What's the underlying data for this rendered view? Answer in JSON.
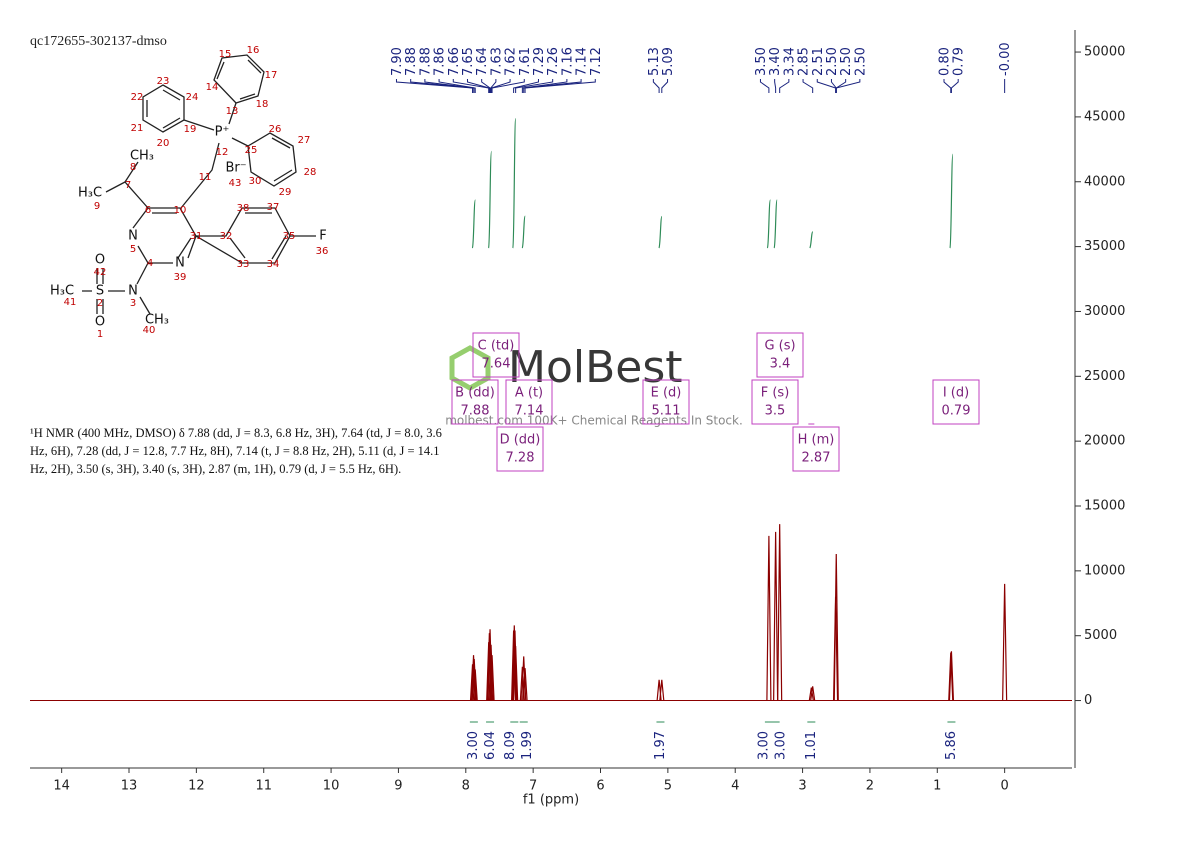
{
  "chart_data": {
    "type": "spectrum",
    "title": "qc172655-302137-dmso",
    "x_label": "f1 (ppm)",
    "xlim": [
      14.47,
      -1.0
    ],
    "xticks": [
      14,
      13,
      12,
      11,
      10,
      9,
      8,
      7,
      6,
      5,
      4,
      3,
      2,
      1,
      0
    ],
    "ylim": [
      -5200,
      51700
    ],
    "yticks": [
      0,
      5000,
      10000,
      15000,
      20000,
      25000,
      30000,
      35000,
      40000,
      45000,
      50000
    ],
    "color": "#8b0000",
    "x": [
      7.9,
      7.885,
      7.875,
      7.86,
      7.66,
      7.65,
      7.64,
      7.625,
      7.61,
      7.29,
      7.28,
      7.27,
      7.26,
      7.16,
      7.14,
      7.12,
      5.13,
      5.09,
      3.5,
      3.4,
      3.34,
      2.87,
      2.85,
      2.51,
      2.5,
      0.8,
      0.79,
      0.0
    ],
    "values": [
      2800,
      3500,
      3200,
      2400,
      4500,
      5200,
      5500,
      4300,
      3500,
      5400,
      5800,
      5400,
      4200,
      2600,
      3400,
      2500,
      1600,
      1600,
      12700,
      13000,
      13600,
      1000,
      1100,
      8000,
      11300,
      3700,
      3800,
      9000
    ],
    "peak_labels": [
      {
        "value": 7.9,
        "label": "7.90"
      },
      {
        "value": 7.88,
        "label": "7.88"
      },
      {
        "value": 7.88,
        "label": "7.88"
      },
      {
        "value": 7.86,
        "label": "7.86"
      },
      {
        "value": 7.66,
        "label": "7.66"
      },
      {
        "value": 7.65,
        "label": "7.65"
      },
      {
        "value": 7.64,
        "label": "7.64"
      },
      {
        "value": 7.63,
        "label": "7.63"
      },
      {
        "value": 7.62,
        "label": "7.62"
      },
      {
        "value": 7.61,
        "label": "7.61"
      },
      {
        "value": 7.29,
        "label": "7.29"
      },
      {
        "value": 7.26,
        "label": "7.26"
      },
      {
        "value": 7.16,
        "label": "7.16"
      },
      {
        "value": 7.14,
        "label": "7.14"
      },
      {
        "value": 7.12,
        "label": "7.12"
      },
      {
        "value": 5.13,
        "label": "5.13"
      },
      {
        "value": 5.09,
        "label": "5.09"
      },
      {
        "value": 3.5,
        "label": "3.50"
      },
      {
        "value": 3.4,
        "label": "3.40"
      },
      {
        "value": 3.34,
        "label": "3.34"
      },
      {
        "value": 2.85,
        "label": "2.85"
      },
      {
        "value": 2.51,
        "label": "2.51"
      },
      {
        "value": 2.5,
        "label": "2.50"
      },
      {
        "value": 2.5,
        "label": "2.50"
      },
      {
        "value": 2.5,
        "label": "2.50"
      },
      {
        "value": 0.8,
        "label": "0.80"
      },
      {
        "value": 0.79,
        "label": "0.79"
      },
      {
        "value": 0,
        "label": "-0.00"
      }
    ],
    "integrals": {
      "x": [
        7.88,
        7.64,
        7.28,
        7.14,
        5.11,
        3.5,
        3.4,
        2.87,
        0.79
      ],
      "values": [
        3,
        6.04,
        8.09,
        1.99,
        1.97,
        3,
        3,
        1.01,
        5.86
      ],
      "value_labels": [
        "3.00",
        "6.04",
        "8.09",
        "1.99",
        "1.97",
        "3.00",
        "3.00",
        "1.01",
        "5.86"
      ]
    },
    "multiplets": [
      {
        "label": "C (td)",
        "shift": 7.64
      },
      {
        "label": "B (dd)",
        "shift": 7.88
      },
      {
        "label": "A (t)",
        "shift": 7.14
      },
      {
        "label": "D (dd)",
        "shift": 7.28
      },
      {
        "label": "E (d)",
        "shift": 5.11
      },
      {
        "label": "G (s)",
        "shift": 3.4
      },
      {
        "label": "F (s)",
        "shift": 3.5
      },
      {
        "label": "H (m)",
        "shift": 2.87
      },
      {
        "label": "I (d)",
        "shift": 0.79
      }
    ]
  },
  "description": "¹H NMR (400 MHz, DMSO) δ 7.88 (dd, J = 8.3, 6.8 Hz, 3H), 7.64 (td, J = 8.0, 3.6 Hz, 6H), 7.28 (dd, J = 12.8, 7.7 Hz, 8H), 7.14 (t, J = 8.8 Hz, 2H), 5.11 (d, J = 14.1 Hz, 2H), 3.50 (s, 3H), 3.40 (s, 3H), 2.87 (m, 1H), 0.79 (d, J = 5.5 Hz, 6H).",
  "watermark": {
    "logo": "MolBest",
    "tagline": "molbest.com 100K+ Chemical Reagents In Stock."
  },
  "structure": {
    "atoms": [
      "P⁺",
      "Br⁻",
      "CH₃",
      "H₃C",
      "N",
      "N",
      "O",
      "S",
      "O",
      "H₃C",
      "N",
      "CH₃",
      "F"
    ],
    "numbers": [
      15,
      16,
      14,
      17,
      13,
      18,
      23,
      24,
      22,
      21,
      19,
      20,
      12,
      26,
      27,
      25,
      28,
      29,
      30,
      43,
      8,
      11,
      7,
      9,
      6,
      10,
      38,
      37,
      31,
      32,
      35,
      36,
      5,
      4,
      39,
      42,
      33,
      34,
      41,
      2,
      3,
      1,
      40
    ]
  }
}
